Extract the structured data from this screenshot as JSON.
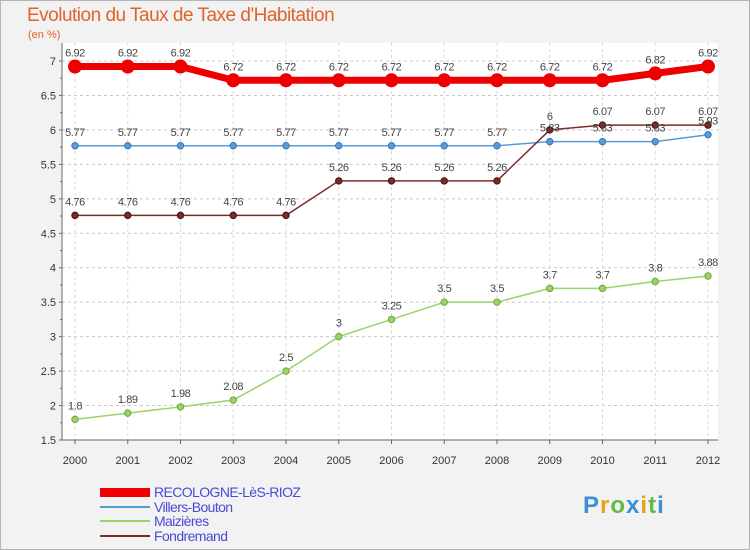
{
  "chart_data": {
    "type": "line",
    "title": "Evolution du Taux de Taxe d'Habitation",
    "ylabel": "(en %)",
    "xlabel": "",
    "x": [
      "2000",
      "2001",
      "2002",
      "2003",
      "2004",
      "2005",
      "2006",
      "2007",
      "2008",
      "2009",
      "2010",
      "2011",
      "2012"
    ],
    "ylim": [
      1.5,
      7
    ],
    "yticks": [
      "1.5",
      "2",
      "2.5",
      "3",
      "3.5",
      "4",
      "4.5",
      "5",
      "5.5",
      "6",
      "6.5",
      "7"
    ],
    "grid": "horizontal-dashed",
    "series": [
      {
        "name": "RECOLOGNE-LèS-RIOZ",
        "color": "#ee0000",
        "values": [
          6.92,
          6.92,
          6.92,
          6.72,
          6.72,
          6.72,
          6.72,
          6.72,
          6.72,
          6.72,
          6.72,
          6.82,
          6.92
        ],
        "labels": [
          "6.92",
          "6.92",
          "6.92",
          "6.72",
          "6.72",
          "6.72",
          "6.72",
          "6.72",
          "6.72",
          "6.72",
          "6.72",
          "6.82",
          "6.92"
        ]
      },
      {
        "name": "Villers-Bouton",
        "color": "#5b9bd5",
        "values": [
          5.77,
          5.77,
          5.77,
          5.77,
          5.77,
          5.77,
          5.77,
          5.77,
          5.77,
          5.83,
          5.83,
          5.83,
          5.93
        ],
        "labels": [
          "5.77",
          "5.77",
          "5.77",
          "5.77",
          "5.77",
          "5.77",
          "5.77",
          "5.77",
          "5.77",
          "5.83",
          "5.83",
          "5.83",
          "5.93"
        ]
      },
      {
        "name": "Maizières",
        "color": "#9bd36b",
        "values": [
          1.8,
          1.89,
          1.98,
          2.08,
          2.5,
          3,
          3.25,
          3.5,
          3.5,
          3.7,
          3.7,
          3.8,
          3.88
        ],
        "labels": [
          "1.8",
          "1.89",
          "1.98",
          "2.08",
          "2.5",
          "3",
          "3.25",
          "3.5",
          "3.5",
          "3.7",
          "3.7",
          "3.8",
          "3.88"
        ]
      },
      {
        "name": "Fondremand",
        "color": "#7a2b2b",
        "values": [
          4.76,
          4.76,
          4.76,
          4.76,
          4.76,
          5.26,
          5.26,
          5.26,
          5.26,
          6,
          6.07,
          6.07,
          6.07
        ],
        "labels": [
          "4.76",
          "4.76",
          "4.76",
          "4.76",
          "4.76",
          "5.26",
          "5.26",
          "5.26",
          "5.26",
          "6",
          "6.07",
          "6.07",
          "6.07"
        ]
      }
    ],
    "legend_position": "bottom-left"
  },
  "logo_text": "Proxiti"
}
